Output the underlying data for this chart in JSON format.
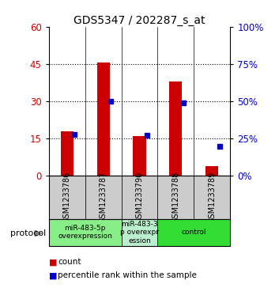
{
  "title": "GDS5347 / 202287_s_at",
  "samples": [
    "GSM1233786",
    "GSM1233787",
    "GSM1233790",
    "GSM1233788",
    "GSM1233789"
  ],
  "bar_values": [
    18,
    45.5,
    16,
    38,
    4
  ],
  "percentile_values": [
    28,
    50,
    27,
    49,
    20
  ],
  "bar_color": "#cc0000",
  "marker_color": "#0000cc",
  "ylim_left": [
    0,
    60
  ],
  "ylim_right": [
    0,
    100
  ],
  "yticks_left": [
    0,
    15,
    30,
    45,
    60
  ],
  "yticks_right": [
    0,
    25,
    50,
    75,
    100
  ],
  "ytick_labels_right": [
    "0%",
    "25%",
    "50%",
    "75%",
    "100%"
  ],
  "groups": [
    {
      "label": "miR-483-5p\noverexpression",
      "samples": [
        0,
        1
      ],
      "color": "#88ee88"
    },
    {
      "label": "miR-483-3\np overexpr\nession",
      "samples": [
        2
      ],
      "color": "#bbeecc"
    },
    {
      "label": "control",
      "samples": [
        3,
        4
      ],
      "color": "#33dd33"
    }
  ],
  "protocol_label": "protocol",
  "legend_count": "count",
  "legend_percentile": "percentile rank within the sample",
  "background_color": "#ffffff",
  "plot_bg_color": "#ffffff",
  "label_area_bg": "#cccccc"
}
